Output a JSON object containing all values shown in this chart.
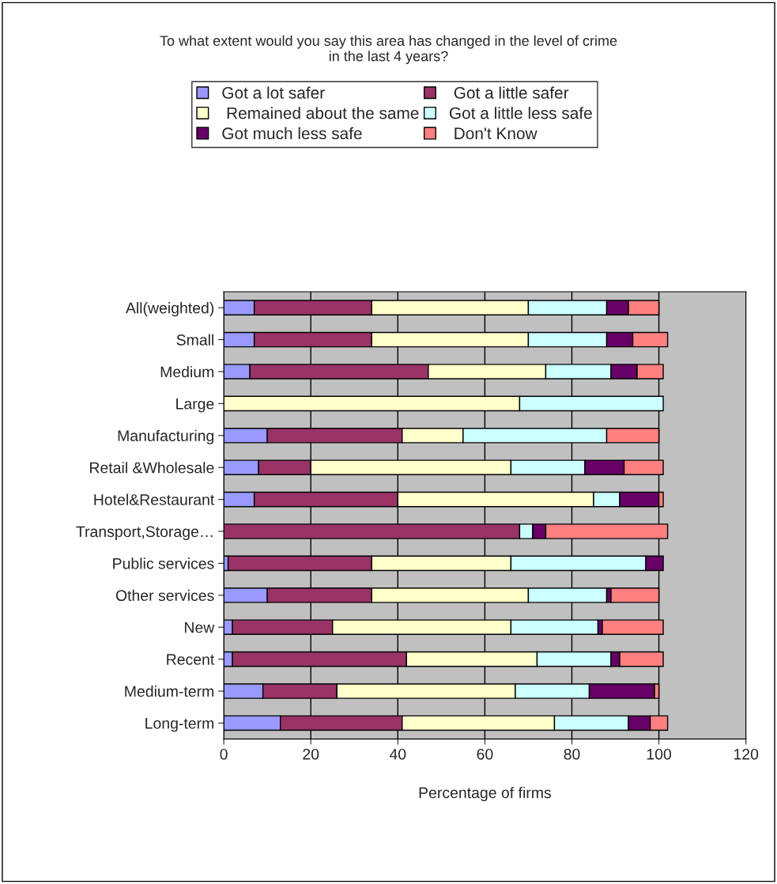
{
  "chart_data": {
    "type": "bar",
    "orientation": "horizontal",
    "stacked": true,
    "title": "To what extent would you say this area has changed in the level of crime\nin the last 4 years?",
    "xlabel": "Percentage of firms",
    "categories": [
      "All(weighted)",
      "Small",
      "Medium",
      "Large",
      "Manufacturing",
      "Retail &Wholesale",
      "Hotel&Restaurant",
      "Transport,Storage…",
      "Public services",
      "Other services",
      "New",
      "Recent",
      "Medium-term",
      "Long-term"
    ],
    "series": [
      {
        "name": "Got a lot safer",
        "color": "#9999ff",
        "values": [
          7,
          7,
          6,
          0,
          10,
          8,
          7,
          0,
          1,
          10,
          2,
          2,
          9,
          13
        ]
      },
      {
        "name": " Got a little safer",
        "color": "#993366",
        "values": [
          27,
          27,
          41,
          0,
          31,
          12,
          33,
          68,
          33,
          24,
          23,
          40,
          17,
          28
        ]
      },
      {
        "name": " Remained about the same",
        "color": "#ffffcc",
        "values": [
          36,
          36,
          27,
          68,
          14,
          46,
          45,
          0,
          32,
          36,
          41,
          30,
          41,
          35
        ]
      },
      {
        "name": "Got a little less safe",
        "color": "#ccffff",
        "values": [
          18,
          18,
          15,
          33,
          33,
          17,
          6,
          3,
          31,
          18,
          20,
          17,
          17,
          17
        ]
      },
      {
        "name": "Got much less safe",
        "color": "#660066",
        "values": [
          5,
          6,
          6,
          0,
          0,
          9,
          9,
          3,
          4,
          1,
          1,
          2,
          15,
          5
        ]
      },
      {
        "name": " Don't Know",
        "color": "#ff8080",
        "values": [
          7,
          8,
          6,
          0,
          12,
          9,
          1,
          28,
          0,
          11,
          14,
          10,
          1,
          4
        ]
      }
    ],
    "xlim": [
      0,
      120
    ],
    "xticks": [
      0,
      20,
      40,
      60,
      80,
      100,
      120
    ],
    "grid": "x",
    "legend": "top"
  }
}
